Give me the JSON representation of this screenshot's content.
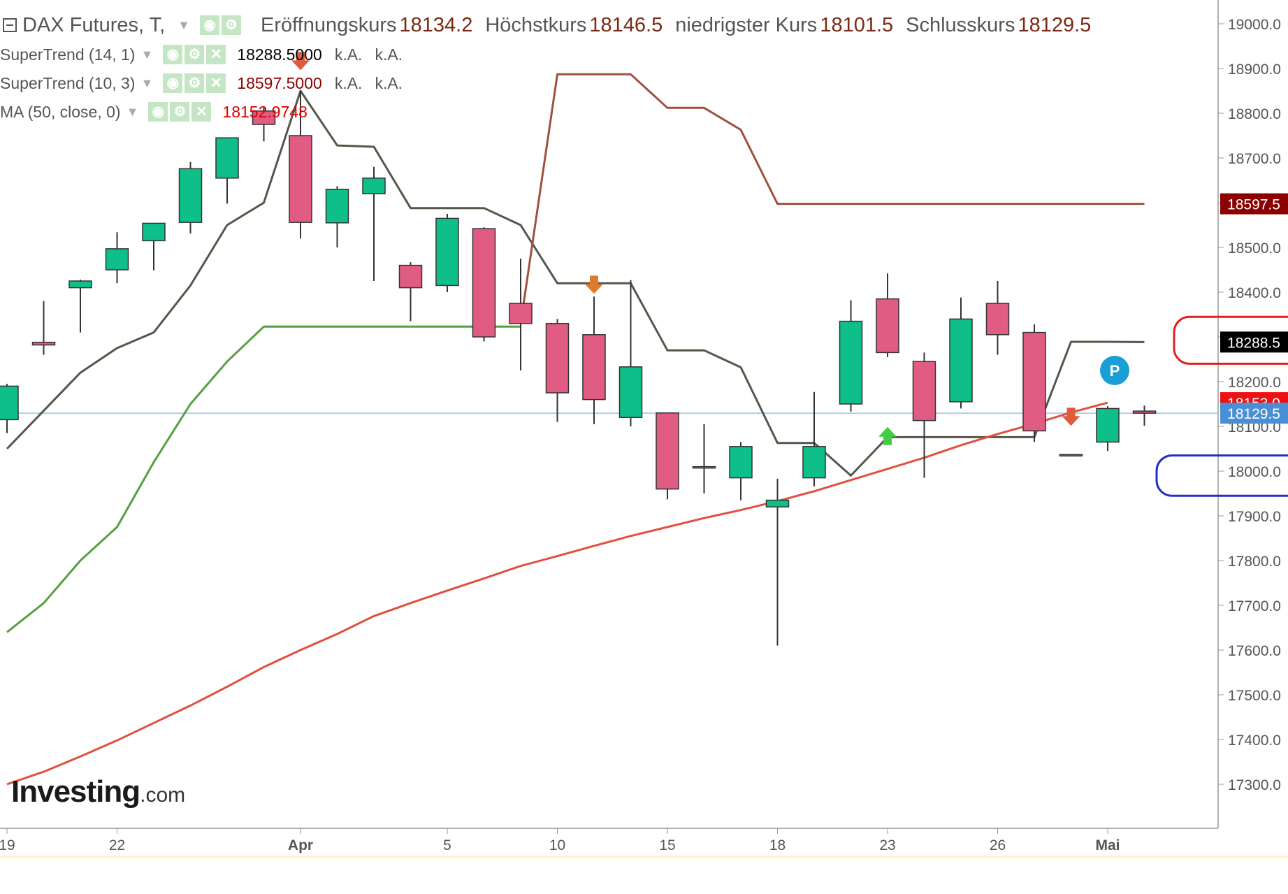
{
  "header": {
    "symbol": "DAX Futures, T,",
    "open_label": "Eröffnungskurs",
    "open_value": "18134.2",
    "high_label": "Höchstkurs",
    "high_value": "18146.5",
    "low_label": "niedrigster Kurs",
    "low_value": "18101.5",
    "close_label": "Schlusskurs",
    "close_value": "18129.5"
  },
  "indicators": [
    {
      "name": "SuperTrend (14, 1)",
      "value": "18288.5000",
      "v2": "k.A.",
      "v3": "k.A.",
      "color": "#000000"
    },
    {
      "name": "SuperTrend (10, 3)",
      "value": "18597.5000",
      "v2": "k.A.",
      "v3": "k.A.",
      "color": "#8b0000"
    },
    {
      "name": "MA (50, close, 0)",
      "value": "18152.9748",
      "color": "#e00000"
    }
  ],
  "logo": {
    "main": "Investing",
    "suffix": ".com"
  },
  "pivot_marker": "P",
  "chart_data": {
    "type": "candlestick",
    "ylim": [
      17200,
      19050
    ],
    "y_ticks": [
      17300,
      17400,
      17500,
      17600,
      17700,
      17800,
      17900,
      18000,
      18100,
      18200,
      18300,
      18400,
      18500,
      18600,
      18700,
      18800,
      18900,
      19000
    ],
    "y_tick_labels": [
      "17300.0",
      "17400.0",
      "17500.0",
      "17600.0",
      "17700.0",
      "17800.0",
      "17900.0",
      "18000.0",
      "18100.0",
      "18200.0",
      "18300.0",
      "18400.0",
      "18500.0",
      "18600.0",
      "18700.0",
      "18800.0",
      "18900.0",
      "19000.0"
    ],
    "x_labels": [
      {
        "label": "19",
        "date": "2024-03-19"
      },
      {
        "label": "22",
        "date": "2024-03-22"
      },
      {
        "label": "Apr",
        "date": "2024-04-01"
      },
      {
        "label": "5",
        "date": "2024-04-05"
      },
      {
        "label": "10",
        "date": "2024-04-10"
      },
      {
        "label": "15",
        "date": "2024-04-15"
      },
      {
        "label": "18",
        "date": "2024-04-18"
      },
      {
        "label": "23",
        "date": "2024-04-23"
      },
      {
        "label": "26",
        "date": "2024-04-26"
      },
      {
        "label": "Mai",
        "date": "2024-05-01"
      }
    ],
    "candles": [
      {
        "date": "2024-03-19",
        "open": 18115,
        "high": 18195,
        "low": 18085,
        "close": 18190
      },
      {
        "date": "2024-03-20",
        "open": 18288,
        "high": 18380,
        "low": 18260,
        "close": 18282
      },
      {
        "date": "2024-03-21",
        "open": 18410,
        "high": 18428,
        "low": 18310,
        "close": 18425
      },
      {
        "date": "2024-03-22",
        "open": 18450,
        "high": 18534,
        "low": 18420,
        "close": 18497
      },
      {
        "date": "2024-03-25",
        "open": 18515,
        "high": 18555,
        "low": 18449,
        "close": 18554
      },
      {
        "date": "2024-03-26",
        "open": 18556,
        "high": 18691,
        "low": 18531,
        "close": 18676
      },
      {
        "date": "2024-03-27",
        "open": 18655,
        "high": 18745,
        "low": 18598,
        "close": 18745
      },
      {
        "date": "2024-03-28",
        "open": 18805,
        "high": 18816,
        "low": 18737,
        "close": 18775
      },
      {
        "date": "2024-04-01",
        "open": 18750,
        "high": 18850,
        "low": 18520,
        "close": 18556
      },
      {
        "date": "2024-04-02",
        "open": 18555,
        "high": 18637,
        "low": 18500,
        "close": 18630
      },
      {
        "date": "2024-04-03",
        "open": 18620,
        "high": 18680,
        "low": 18425,
        "close": 18655
      },
      {
        "date": "2024-04-04",
        "open": 18460,
        "high": 18467,
        "low": 18335,
        "close": 18410
      },
      {
        "date": "2024-04-05",
        "open": 18415,
        "high": 18575,
        "low": 18400,
        "close": 18565
      },
      {
        "date": "2024-04-08",
        "open": 18542,
        "high": 18545,
        "low": 18290,
        "close": 18300
      },
      {
        "date": "2024-04-09",
        "open": 18375,
        "high": 18475,
        "low": 18225,
        "close": 18330
      },
      {
        "date": "2024-04-10",
        "open": 18330,
        "high": 18340,
        "low": 18110,
        "close": 18175
      },
      {
        "date": "2024-04-11",
        "open": 18305,
        "high": 18390,
        "low": 18105,
        "close": 18160
      },
      {
        "date": "2024-04-12",
        "open": 18120,
        "high": 18427,
        "low": 18100,
        "close": 18233
      },
      {
        "date": "2024-04-15",
        "open": 18130,
        "high": 18130,
        "low": 17937,
        "close": 17960
      },
      {
        "date": "2024-04-16",
        "open": 18010,
        "high": 18105,
        "low": 17950,
        "close": 18010
      },
      {
        "date": "2024-04-17",
        "open": 17985,
        "high": 18065,
        "low": 17935,
        "close": 18055
      },
      {
        "date": "2024-04-18",
        "open": 17920,
        "high": 17983,
        "low": 17610,
        "close": 17935
      },
      {
        "date": "2024-04-19",
        "open": 17985,
        "high": 18177,
        "low": 17966,
        "close": 18055
      },
      {
        "date": "2024-04-22",
        "open": 18150,
        "high": 18382,
        "low": 18133,
        "close": 18335
      },
      {
        "date": "2024-04-23",
        "open": 18385,
        "high": 18442,
        "low": 18255,
        "close": 18265
      },
      {
        "date": "2024-04-24",
        "open": 18245,
        "high": 18265,
        "low": 17985,
        "close": 18113
      },
      {
        "date": "2024-04-25",
        "open": 18155,
        "high": 18388,
        "low": 18140,
        "close": 18340
      },
      {
        "date": "2024-04-26",
        "open": 18375,
        "high": 18425,
        "low": 18260,
        "close": 18305
      },
      {
        "date": "2024-04-29",
        "open": 18310,
        "high": 18328,
        "low": 18065,
        "close": 18090
      },
      {
        "date": "2024-04-30",
        "open": 18037,
        "high": 18037,
        "low": 18037,
        "close": 18037
      },
      {
        "date": "2024-05-01",
        "open": 18065,
        "high": 18145,
        "low": 18045,
        "close": 18140
      },
      {
        "date": "2024-05-02",
        "open": 18134.2,
        "high": 18146.5,
        "low": 18101.5,
        "close": 18129.5
      }
    ],
    "series": [
      {
        "name": "SuperTrend (14, 1)",
        "color": "#55574a",
        "values": [
          [
            "2024-03-19",
            18050
          ],
          [
            "2024-03-20",
            18135
          ],
          [
            "2024-03-21",
            18220
          ],
          [
            "2024-03-22",
            18275
          ],
          [
            "2024-03-25",
            18310
          ],
          [
            "2024-03-26",
            18415
          ],
          [
            "2024-03-27",
            18550
          ],
          [
            "2024-03-28",
            18600
          ],
          [
            "2024-04-01",
            18850
          ],
          [
            "2024-04-02",
            18728
          ],
          [
            "2024-04-03",
            18725
          ],
          [
            "2024-04-04",
            18588
          ],
          [
            "2024-04-05",
            18588
          ],
          [
            "2024-04-08",
            18588
          ],
          [
            "2024-04-09",
            18550
          ],
          [
            "2024-04-10",
            18420
          ],
          [
            "2024-04-11",
            18420
          ],
          [
            "2024-04-12",
            18420
          ],
          [
            "2024-04-15",
            18270
          ],
          [
            "2024-04-16",
            18270
          ],
          [
            "2024-04-17",
            18232
          ],
          [
            "2024-04-18",
            18063
          ],
          [
            "2024-04-19",
            18063
          ],
          [
            "2024-04-22",
            17990
          ],
          [
            "2024-04-23",
            18076
          ],
          [
            "2024-04-24",
            18076
          ],
          [
            "2024-04-25",
            18076
          ],
          [
            "2024-04-26",
            18076
          ],
          [
            "2024-04-29",
            18076
          ],
          [
            "2024-04-30",
            18289
          ],
          [
            "2024-05-01",
            18289
          ],
          [
            "2024-05-02",
            18288.5
          ]
        ]
      },
      {
        "name": "SuperTrend (10, 3)",
        "color": "#a05040",
        "values": [
          [
            "2024-04-09",
            18330
          ],
          [
            "2024-04-10",
            18887
          ],
          [
            "2024-04-11",
            18887
          ],
          [
            "2024-04-12",
            18887
          ],
          [
            "2024-04-15",
            18812
          ],
          [
            "2024-04-16",
            18812
          ],
          [
            "2024-04-17",
            18763
          ],
          [
            "2024-04-18",
            18597.5
          ],
          [
            "2024-04-19",
            18597.5
          ],
          [
            "2024-04-22",
            18597.5
          ],
          [
            "2024-04-23",
            18597.5
          ],
          [
            "2024-04-24",
            18597.5
          ],
          [
            "2024-04-25",
            18597.5
          ],
          [
            "2024-04-26",
            18597.5
          ],
          [
            "2024-04-29",
            18597.5
          ],
          [
            "2024-04-30",
            18597.5
          ],
          [
            "2024-05-01",
            18597.5
          ],
          [
            "2024-05-02",
            18597.5
          ]
        ]
      },
      {
        "name": "SuperTrend (10, 3)",
        "color": "#55a040",
        "values": [
          [
            "2024-03-19",
            17640
          ],
          [
            "2024-03-20",
            17705
          ],
          [
            "2024-03-21",
            17800
          ],
          [
            "2024-03-22",
            17875
          ],
          [
            "2024-03-25",
            18020
          ],
          [
            "2024-03-26",
            18150
          ],
          [
            "2024-03-27",
            18245
          ],
          [
            "2024-03-28",
            18323
          ],
          [
            "2024-04-01",
            18323
          ],
          [
            "2024-04-02",
            18323
          ],
          [
            "2024-04-03",
            18323
          ],
          [
            "2024-04-04",
            18323
          ],
          [
            "2024-04-05",
            18323
          ],
          [
            "2024-04-08",
            18323
          ],
          [
            "2024-04-09",
            18323
          ]
        ]
      },
      {
        "name": "MA (50, close, 0)",
        "color": "#e05040",
        "values": [
          [
            "2024-03-19",
            17300
          ],
          [
            "2024-03-20",
            17328
          ],
          [
            "2024-03-21",
            17362
          ],
          [
            "2024-03-22",
            17398
          ],
          [
            "2024-03-25",
            17437
          ],
          [
            "2024-03-26",
            17476
          ],
          [
            "2024-03-27",
            17518
          ],
          [
            "2024-03-28",
            17562
          ],
          [
            "2024-04-01",
            17600
          ],
          [
            "2024-04-02",
            17636
          ],
          [
            "2024-04-03",
            17676
          ],
          [
            "2024-04-04",
            17705
          ],
          [
            "2024-04-05",
            17733
          ],
          [
            "2024-04-08",
            17760
          ],
          [
            "2024-04-09",
            17788
          ],
          [
            "2024-04-10",
            17810
          ],
          [
            "2024-04-11",
            17833
          ],
          [
            "2024-04-12",
            17855
          ],
          [
            "2024-04-15",
            17875
          ],
          [
            "2024-04-16",
            17895
          ],
          [
            "2024-04-17",
            17913
          ],
          [
            "2024-04-18",
            17933
          ],
          [
            "2024-04-19",
            17955
          ],
          [
            "2024-04-22",
            17980
          ],
          [
            "2024-04-23",
            18005
          ],
          [
            "2024-04-24",
            18030
          ],
          [
            "2024-04-25",
            18058
          ],
          [
            "2024-04-26",
            18083
          ],
          [
            "2024-04-29",
            18106
          ],
          [
            "2024-04-30",
            18131
          ],
          [
            "2024-05-01",
            18153
          ]
        ]
      }
    ],
    "signals": [
      {
        "date": "2024-04-01",
        "type": "sell",
        "value": 18915,
        "color": "#e05a3c"
      },
      {
        "date": "2024-04-11",
        "type": "sell",
        "value": 18415,
        "color": "#e07a2c"
      },
      {
        "date": "2024-04-23",
        "type": "buy",
        "value": 18080,
        "color": "#44cc44"
      },
      {
        "date": "2024-04-30",
        "type": "sell",
        "value": 18120,
        "color": "#e05a3c"
      }
    ],
    "price_tags": [
      {
        "text": "18597.5",
        "value": 18597.5,
        "color": "#8b0000"
      },
      {
        "text": "18288.5",
        "value": 18288.5,
        "color": "#000000"
      },
      {
        "text": "18153.0",
        "value": 18153,
        "color": "#ee1111"
      },
      {
        "text": "18129.5",
        "value": 18129.5,
        "color": "#4a8fd6"
      }
    ],
    "current_price": 18129.5,
    "annotations": [
      {
        "shape": "rounded-rect",
        "color": "#e02020",
        "y_top": 18345,
        "y_bottom": 18240
      },
      {
        "shape": "rounded-rect",
        "color": "#2030c0",
        "y_top": 18035,
        "y_bottom": 17945
      }
    ],
    "pivot": {
      "date": "2024-05-01",
      "value": 18225,
      "color": "#1a9fd4"
    },
    "colors": {
      "up": "#0fbf8a",
      "down": "#e05c82",
      "wick": "#333333"
    },
    "grid": false
  }
}
